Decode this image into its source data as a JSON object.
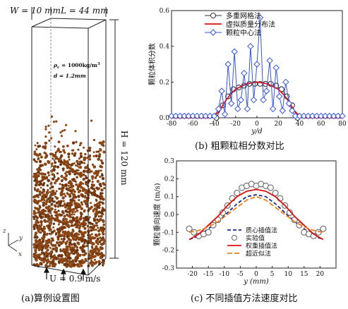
{
  "panel_a": {
    "dim_w": "W = 10 mm",
    "dim_l": "L = 44 mm",
    "dim_h": "H = 120 mm",
    "rho": "ρ",
    "rho_sub": "c",
    "rho_val": " = 1000kg/m",
    "rho_exp": "3",
    "d_label": "d = 1.2mm",
    "velocity": "U = 0.9 m/s",
    "axis_z": "z",
    "axis_y": "y",
    "axis_x": "x",
    "caption": "(a)算例设置图",
    "particle_color": "#8b4513"
  },
  "chart_data": [
    {
      "type": "line",
      "caption": "(b) 粗颗粒相分数对比",
      "xlabel": "y/d",
      "ylabel": "颗粒体积分数",
      "xlim": [
        -80,
        80
      ],
      "ylim": [
        0,
        0.6
      ],
      "xticks": [
        "-80",
        "-60",
        "-40",
        "-20",
        "0",
        "20",
        "40",
        "60",
        "80"
      ],
      "yticks": [
        "0.0",
        "0.2",
        "0.4",
        "0.6"
      ],
      "legend_position": "top-right",
      "series": [
        {
          "name": "多重网格法",
          "color": "#333333",
          "marker": "circle",
          "x": [
            -38,
            -32,
            -27,
            -22,
            -17,
            -12,
            -7,
            -2,
            3,
            8,
            13,
            18,
            23,
            28,
            33,
            38
          ],
          "y": [
            0.0,
            0.07,
            0.12,
            0.16,
            0.17,
            0.18,
            0.19,
            0.19,
            0.19,
            0.19,
            0.19,
            0.18,
            0.16,
            0.12,
            0.07,
            0.0
          ]
        },
        {
          "name": "虚拟质量分布法",
          "color": "#e01010",
          "marker": "none",
          "x": [
            -80,
            -45,
            -40,
            -35,
            -30,
            -25,
            -20,
            -10,
            0,
            10,
            20,
            25,
            30,
            35,
            40,
            45,
            80
          ],
          "y": [
            0.0,
            0.0,
            0.01,
            0.04,
            0.09,
            0.13,
            0.16,
            0.19,
            0.2,
            0.19,
            0.16,
            0.13,
            0.09,
            0.04,
            0.01,
            0.0,
            0.0
          ]
        },
        {
          "name": "颗粒中心法",
          "color": "#3355dd",
          "marker": "diamond",
          "x": [
            -80,
            -76,
            -72,
            -68,
            -64,
            -60,
            -56,
            -52,
            -48,
            -44,
            -40,
            -36,
            -33,
            -30,
            -27,
            -24,
            -21,
            -18,
            -15,
            -12,
            -9,
            -6,
            -3,
            0,
            3,
            6,
            9,
            12,
            15,
            18,
            21,
            24,
            27,
            30,
            33,
            36,
            40,
            44,
            48,
            52,
            56,
            60,
            64,
            68,
            72,
            76,
            80
          ],
          "y": [
            0.01,
            0.01,
            0.01,
            0.01,
            0.01,
            0.01,
            0.01,
            0.01,
            0.01,
            0.01,
            0.01,
            0.05,
            0.15,
            0.02,
            0.3,
            0.08,
            0.37,
            0.05,
            0.1,
            0.25,
            0.05,
            0.4,
            0.1,
            0.3,
            0.56,
            0.1,
            0.15,
            0.32,
            0.05,
            0.28,
            0.12,
            0.04,
            0.2,
            0.08,
            0.04,
            0.01,
            0.01,
            0.01,
            0.01,
            0.01,
            0.01,
            0.01,
            0.01,
            0.01,
            0.01,
            0.01,
            0.01
          ]
        }
      ]
    },
    {
      "type": "line",
      "caption": "(c) 不同插值方法速度对比",
      "xlabel": "y (mm)",
      "ylabel": "颗粒垂向速度 (m/s)",
      "xlim": [
        -25,
        25
      ],
      "ylim": [
        -0.3,
        0.3
      ],
      "xticks": [
        "-20",
        "-15",
        "-10",
        "-5",
        "0",
        "5",
        "10",
        "15",
        "20"
      ],
      "yticks": [
        "-0.3",
        "-0.2",
        "-0.1",
        "0.0",
        "0.1",
        "0.2",
        "0.3"
      ],
      "legend_position": "bottom-center",
      "series": [
        {
          "name": "质心插值法",
          "color": "#1a2a8a",
          "marker": "none",
          "x": [
            -21,
            -18,
            -15,
            -12,
            -9,
            -6,
            -3,
            0,
            3,
            6,
            9,
            12,
            15,
            18,
            21
          ],
          "y": [
            -0.14,
            -0.12,
            -0.08,
            -0.04,
            0.01,
            0.06,
            0.1,
            0.11,
            0.1,
            0.06,
            0.01,
            -0.04,
            -0.08,
            -0.12,
            -0.14
          ]
        },
        {
          "name": "实验值",
          "color": "#666666",
          "marker": "circle",
          "x": [
            -21,
            -19.5,
            -18,
            -16.5,
            -15,
            -13.5,
            -12,
            -10.5,
            -9,
            -7.5,
            -6,
            -4.5,
            -3,
            -1.5,
            0,
            1.5,
            3,
            4.5,
            6,
            7.5,
            9,
            10.5,
            12,
            13.5,
            15,
            16.5,
            18,
            19.5,
            21
          ],
          "y": [
            -0.08,
            -0.1,
            -0.12,
            -0.11,
            -0.1,
            -0.06,
            -0.03,
            0.01,
            0.05,
            0.09,
            0.12,
            0.15,
            0.16,
            0.17,
            0.16,
            0.17,
            0.16,
            0.15,
            0.12,
            0.09,
            0.05,
            0.01,
            -0.03,
            -0.06,
            -0.1,
            -0.11,
            -0.12,
            -0.1,
            -0.08
          ]
        },
        {
          "name": "权重插值法",
          "color": "#e01010",
          "marker": "none",
          "x": [
            -21,
            -18,
            -15,
            -12,
            -9,
            -6,
            -3,
            0,
            3,
            6,
            9,
            12,
            15,
            18,
            21
          ],
          "y": [
            -0.14,
            -0.11,
            -0.06,
            -0.01,
            0.05,
            0.1,
            0.13,
            0.14,
            0.13,
            0.1,
            0.05,
            -0.01,
            -0.06,
            -0.11,
            -0.14
          ]
        },
        {
          "name": "超近似法",
          "color": "#f08020",
          "marker": "none",
          "x": [
            -21,
            -18,
            -15,
            -12,
            -9,
            -6,
            -3,
            0,
            3,
            6,
            9,
            12,
            15,
            18,
            21
          ],
          "y": [
            -0.1,
            -0.09,
            -0.07,
            -0.04,
            0.0,
            0.04,
            0.08,
            0.1,
            0.08,
            0.04,
            0.0,
            -0.04,
            -0.07,
            -0.09,
            -0.1
          ]
        }
      ]
    }
  ]
}
